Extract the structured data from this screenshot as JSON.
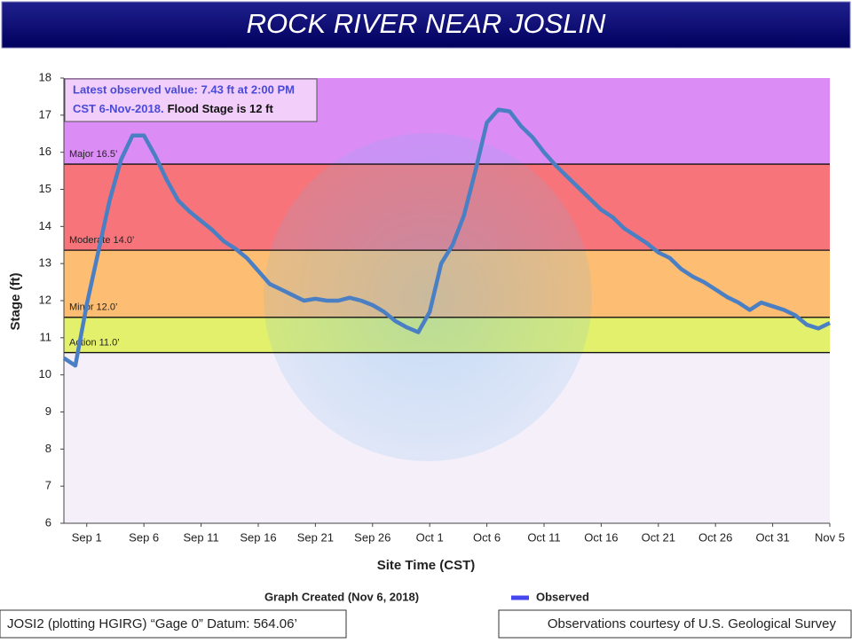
{
  "chart_data": {
    "type": "line",
    "title": "ROCK RIVER NEAR JOSLIN",
    "annotation": [
      "Latest observed value: 7.43 ft at 2:00 PM",
      "CST 6-Nov-2018.",
      "Flood Stage is 12 ft"
    ],
    "y_label": "Stage (ft)",
    "x_label": "Site Time (CST)",
    "created": "Graph Created (Nov 6, 2018)",
    "footer_left": "JOSI2 (plotting HGIRG) “Gage 0” Datum: 564.06’",
    "footer_right": "Observations courtesy of U.S. Geological Survey",
    "ylim": [
      6,
      18
    ],
    "yticks": [
      6,
      7,
      8,
      9,
      10,
      11,
      12,
      13,
      14,
      15,
      16,
      17,
      18
    ],
    "xlim": [
      "Aug 30",
      "Nov 5"
    ],
    "xticks": [
      "Sep 1",
      "Sep 6",
      "Sep 11",
      "Sep 16",
      "Sep 21",
      "Sep 26",
      "Oct 1",
      "Oct 6",
      "Oct 11",
      "Oct 16",
      "Oct 21",
      "Oct 26",
      "Oct 31",
      "Nov 5"
    ],
    "background": "#f4eff9",
    "flood_categories": [
      {
        "name": "Action 11.0’",
        "level": 10.6,
        "color": "#e3f06c"
      },
      {
        "name": "Minor 12.0’",
        "level": 11.55,
        "color": "#fdbd72"
      },
      {
        "name": "Moderate 14.0’",
        "level": 13.36,
        "color": "#f7757a"
      },
      {
        "name": "Major 16.5’",
        "level": 15.68,
        "color": "#dc8cf5"
      }
    ],
    "x": [
      "Aug 30",
      "Aug 31",
      "Sep 1",
      "Sep 2",
      "Sep 3",
      "Sep 4",
      "Sep 5",
      "Sep 6",
      "Sep 7",
      "Sep 8",
      "Sep 9",
      "Sep 10",
      "Sep 11",
      "Sep 12",
      "Sep 13",
      "Sep 14",
      "Sep 15",
      "Sep 16",
      "Sep 17",
      "Sep 18",
      "Sep 19",
      "Sep 20",
      "Sep 21",
      "Sep 22",
      "Sep 23",
      "Sep 24",
      "Sep 25",
      "Sep 26",
      "Sep 27",
      "Sep 28",
      "Sep 29",
      "Sep 30",
      "Oct 1",
      "Oct 2",
      "Oct 3",
      "Oct 4",
      "Oct 5",
      "Oct 6",
      "Oct 7",
      "Oct 8",
      "Oct 9",
      "Oct 10",
      "Oct 11",
      "Oct 12",
      "Oct 13",
      "Oct 14",
      "Oct 15",
      "Oct 16",
      "Oct 17",
      "Oct 18",
      "Oct 19",
      "Oct 20",
      "Oct 21",
      "Oct 22",
      "Oct 23",
      "Oct 24",
      "Oct 25",
      "Oct 26",
      "Oct 27",
      "Oct 28",
      "Oct 29",
      "Oct 30",
      "Oct 31",
      "Nov 1",
      "Nov 2",
      "Nov 3",
      "Nov 4",
      "Nov 5"
    ],
    "series": [
      {
        "name": "Observed",
        "color": "#4a7fc4",
        "legend_color": "#4646ee",
        "values": [
          10.45,
          10.25,
          11.9,
          13.3,
          14.7,
          15.8,
          16.45,
          16.45,
          15.9,
          15.25,
          14.7,
          14.4,
          14.15,
          13.9,
          13.6,
          13.4,
          13.15,
          12.8,
          12.45,
          12.3,
          12.15,
          12.0,
          12.05,
          12.0,
          12.0,
          12.08,
          12.0,
          11.88,
          11.7,
          11.45,
          11.28,
          11.15,
          11.7,
          13.0,
          13.5,
          14.3,
          15.5,
          16.8,
          17.15,
          17.1,
          16.7,
          16.4,
          16.0,
          15.65,
          15.35,
          15.05,
          14.75,
          14.45,
          14.25,
          13.95,
          13.75,
          13.55,
          13.3,
          13.15,
          12.85,
          12.65,
          12.5,
          12.3,
          12.1,
          11.95,
          11.75,
          11.95,
          11.85,
          11.75,
          11.6,
          11.35,
          11.25,
          11.4
        ]
      }
    ]
  }
}
